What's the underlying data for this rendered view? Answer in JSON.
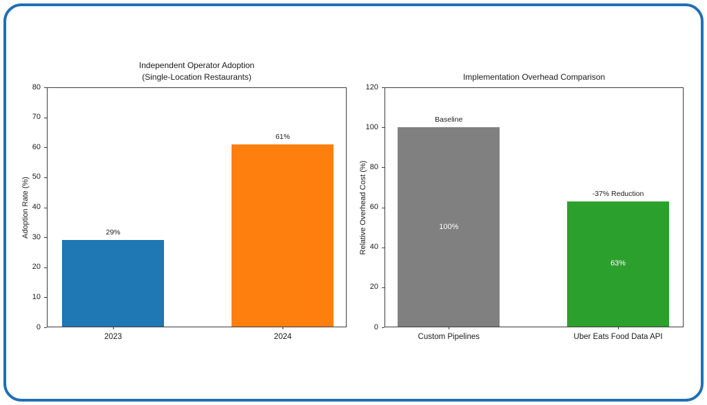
{
  "figure": {
    "background": "#ffffff",
    "border_color": "#2070b4",
    "text_color": "#1a1a1a",
    "spine_color": "#3a3a3a"
  },
  "chart_data": [
    {
      "type": "bar",
      "title_lines": [
        "Independent Operator Adoption",
        "(Single-Location Restaurants)"
      ],
      "ylabel": "Adoption Rate (%)",
      "xlabel": "",
      "categories": [
        "2023",
        "2024"
      ],
      "values": [
        29,
        61
      ],
      "bar_colors": [
        "#1f77b4",
        "#ff7f0e"
      ],
      "labels_above": [
        "29%",
        "61%"
      ],
      "labels_inside": [
        "",
        ""
      ],
      "ylim": [
        0,
        80
      ],
      "yticks": [
        0,
        10,
        20,
        30,
        40,
        50,
        60,
        70,
        80
      ],
      "grid": false,
      "legend_position": "none"
    },
    {
      "type": "bar",
      "title_lines": [
        "Implementation Overhead Comparison"
      ],
      "ylabel": "Relative Overhead Cost (%)",
      "xlabel": "",
      "categories": [
        "Custom Pipelines",
        "Uber Eats Food Data API"
      ],
      "values": [
        100,
        63
      ],
      "bar_colors": [
        "#808080",
        "#2ca02c"
      ],
      "labels_above": [
        "Baseline",
        "-37% Reduction"
      ],
      "labels_inside": [
        "100%",
        "63%"
      ],
      "ylim": [
        0,
        120
      ],
      "yticks": [
        0,
        20,
        40,
        60,
        80,
        100,
        120
      ],
      "grid": false,
      "legend_position": "none"
    }
  ]
}
